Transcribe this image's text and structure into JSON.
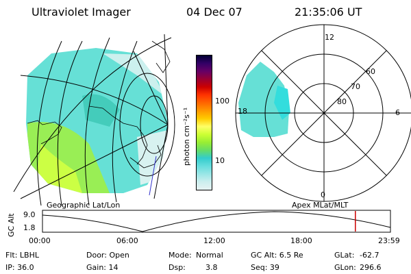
{
  "header": {
    "instrument": "Ultraviolet Imager",
    "date": "04 Dec 07",
    "time": "21:35:06 UT"
  },
  "geo_panel": {
    "caption": "Geographic Lat/Lon"
  },
  "colorbar": {
    "unit_label": "photon cm⁻²s⁻¹",
    "ticks": [
      "100",
      "10"
    ],
    "scale": "log",
    "colors": [
      "#000033",
      "#330066",
      "#660066",
      "#990033",
      "#cc0000",
      "#ff3300",
      "#ff6600",
      "#ff9900",
      "#ffcc00",
      "#ffff66",
      "#ccff33",
      "#99ee33",
      "#66dd66",
      "#33cccc",
      "#66dddd",
      "#99e6e6",
      "#cceeee",
      "#e6f2f2"
    ]
  },
  "polar_panel": {
    "caption": "Apex  MLat/MLT",
    "mlt_labels": {
      "top": "12",
      "right": "6",
      "bottom": "0",
      "left": "18"
    },
    "lat_labels": [
      "60",
      "70",
      "80"
    ]
  },
  "timeline": {
    "axis_label": "GC Alt",
    "y_ticks": [
      "9.0",
      "1.8"
    ],
    "x_ticks": [
      "00:00",
      "06:00",
      "12:00",
      "18:00",
      "23:59"
    ],
    "current_marker_hours": 21.58,
    "marker_color": "#cc0000"
  },
  "info": {
    "filter": "Flt: LBHL",
    "ip": "IP: 36.0",
    "door": "Door: Open",
    "gain": "Gain: 14",
    "mode_label": "Mode:",
    "mode_value": "Normal",
    "dsp_label": "Dsp:",
    "dsp_value": "3.8",
    "gc_alt": "GC Alt: 6.5 Re",
    "seq": "Seq: 39",
    "glat_label": "GLat:",
    "glat_value": "-62.7",
    "glon_label": "GLon:",
    "glon_value": "296.6"
  }
}
